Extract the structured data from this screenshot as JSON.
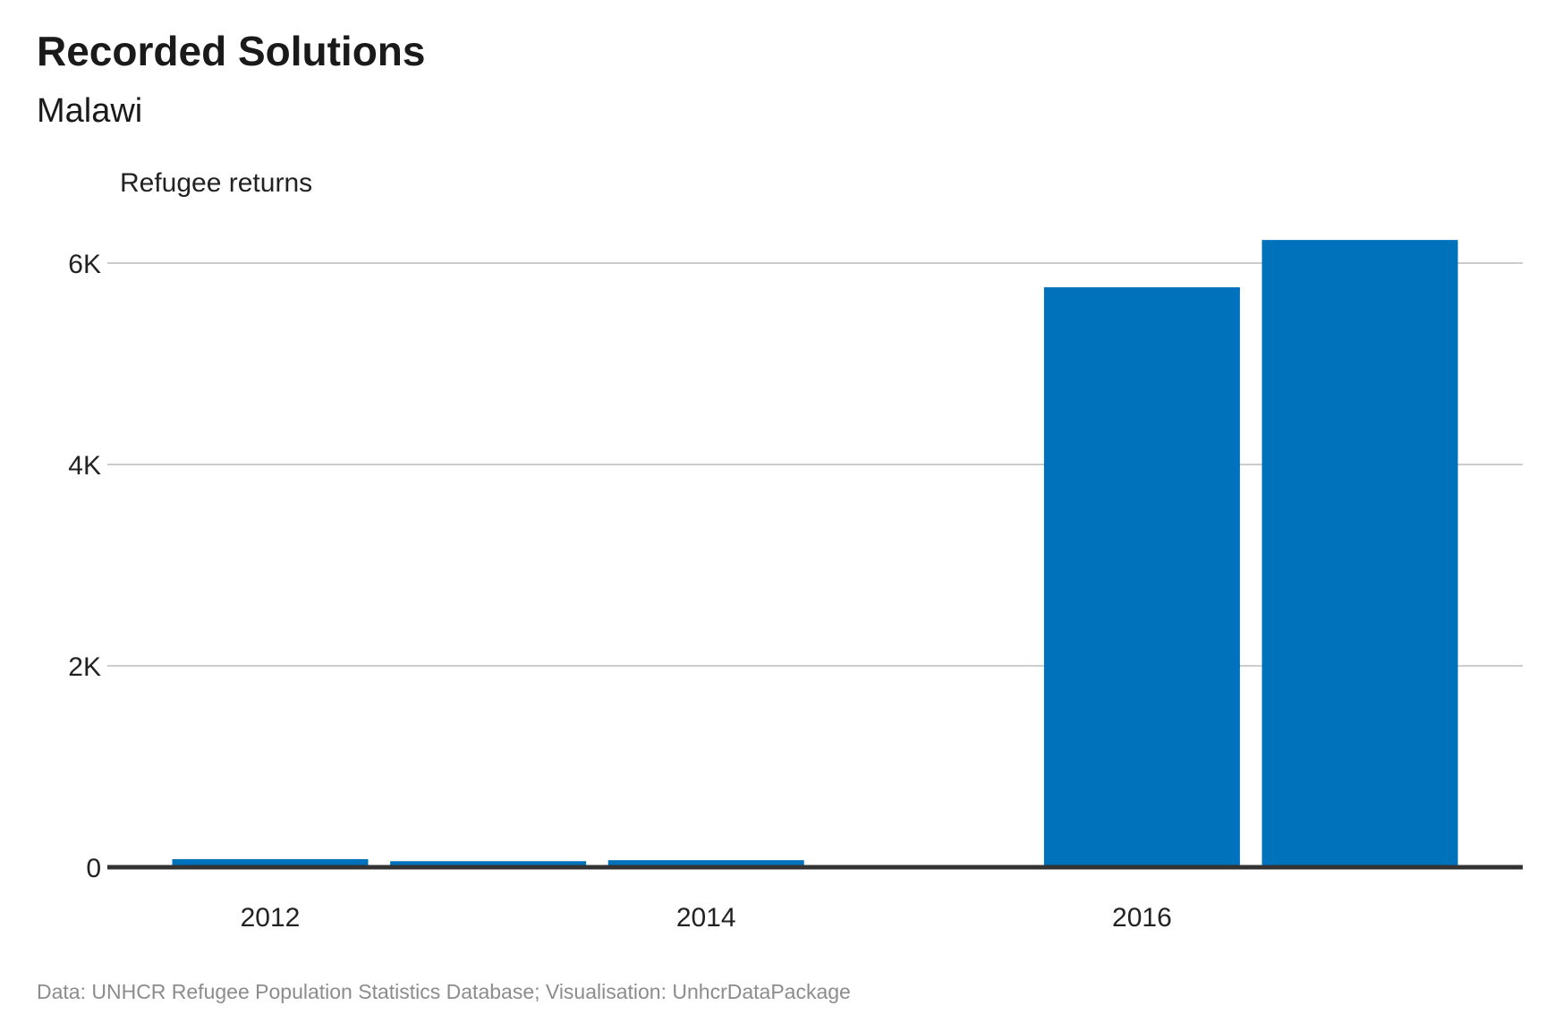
{
  "chart_data": {
    "type": "bar",
    "title": "Recorded Solutions",
    "subtitle": "Malawi",
    "ylabel": "Refugee returns",
    "xlabel": "",
    "categories": [
      "2012",
      "2013",
      "2014",
      "2015",
      "2016",
      "2017"
    ],
    "values": [
      80,
      60,
      70,
      0,
      5760,
      6230
    ],
    "ylim": [
      0,
      6500
    ],
    "y_ticks": [
      {
        "value": 0,
        "label": "0"
      },
      {
        "value": 2000,
        "label": "2K"
      },
      {
        "value": 4000,
        "label": "4K"
      },
      {
        "value": 6000,
        "label": "6K"
      }
    ],
    "x_ticks": [
      {
        "value": "2012",
        "label": "2012"
      },
      {
        "value": "2014",
        "label": "2014"
      },
      {
        "value": "2016",
        "label": "2016"
      }
    ],
    "grid": "horizontal",
    "bar_color": "#0072BC",
    "caption": "Data: UNHCR Refugee Population Statistics Database; Visualisation: UnhcrDataPackage"
  }
}
